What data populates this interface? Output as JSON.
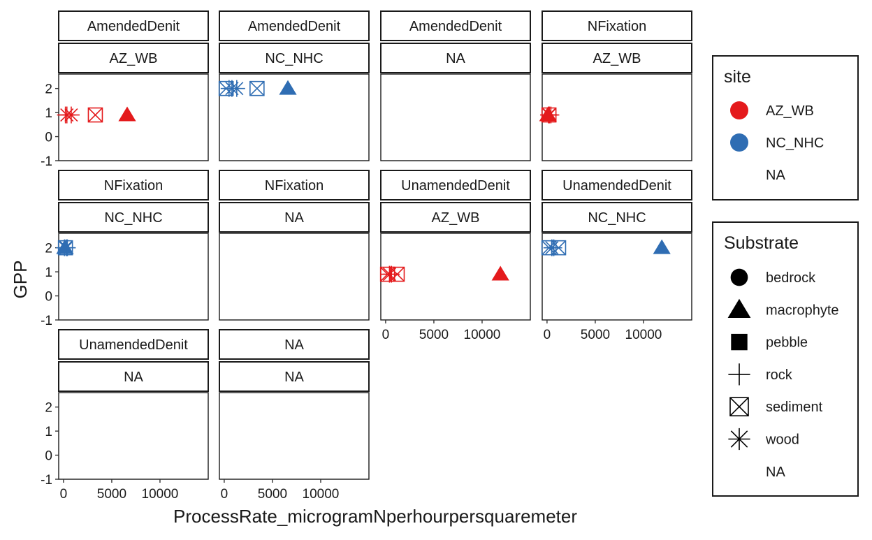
{
  "chart_data": {
    "type": "scatter",
    "title": "",
    "xlabel": "ProcessRate_microgramNperhourpersquaremeter",
    "ylabel": "GPP",
    "xlim": [
      -500,
      15000
    ],
    "ylim": [
      -1,
      2.6
    ],
    "x_ticks": [
      0,
      5000,
      10000
    ],
    "x_tick_labels": [
      "0",
      "5000",
      "10000"
    ],
    "y_ticks": [
      -1,
      0,
      1,
      2
    ],
    "y_tick_labels": [
      "-1",
      "0",
      "1",
      "2"
    ],
    "grid": false,
    "legend_position": "right",
    "colors": {
      "AZ_WB": "#e41a1c",
      "NC_NHC": "#2f6db3"
    },
    "legends": [
      {
        "title": "site",
        "kind": "color",
        "items": [
          {
            "label": "AZ_WB",
            "color": "#e41a1c"
          },
          {
            "label": "NC_NHC",
            "color": "#2f6db3"
          },
          {
            "label": "NA",
            "color": "none"
          }
        ]
      },
      {
        "title": "Substrate",
        "kind": "shape",
        "items": [
          {
            "label": "bedrock",
            "shape": "circle"
          },
          {
            "label": "macrophyte",
            "shape": "triangle"
          },
          {
            "label": "pebble",
            "shape": "square"
          },
          {
            "label": "rock",
            "shape": "plus"
          },
          {
            "label": "sediment",
            "shape": "boxx"
          },
          {
            "label": "wood",
            "shape": "asterisk"
          },
          {
            "label": "NA",
            "shape": "none"
          }
        ]
      }
    ],
    "panels": [
      {
        "strip1": "AmendedDenit",
        "strip2": "AZ_WB",
        "points": [
          {
            "x": 200,
            "y": 0.9,
            "site": "AZ_WB",
            "shape": "plus"
          },
          {
            "x": 350,
            "y": 0.9,
            "site": "AZ_WB",
            "shape": "asterisk"
          },
          {
            "x": 800,
            "y": 0.9,
            "site": "AZ_WB",
            "shape": "asterisk"
          },
          {
            "x": 3300,
            "y": 0.9,
            "site": "AZ_WB",
            "shape": "boxx"
          },
          {
            "x": 6600,
            "y": 0.9,
            "site": "AZ_WB",
            "shape": "triangle"
          }
        ]
      },
      {
        "strip1": "AmendedDenit",
        "strip2": "NC_NHC",
        "points": [
          {
            "x": 200,
            "y": 2.0,
            "site": "NC_NHC",
            "shape": "boxx"
          },
          {
            "x": 500,
            "y": 2.0,
            "site": "NC_NHC",
            "shape": "plus"
          },
          {
            "x": 800,
            "y": 2.0,
            "site": "NC_NHC",
            "shape": "asterisk"
          },
          {
            "x": 1300,
            "y": 2.0,
            "site": "NC_NHC",
            "shape": "asterisk"
          },
          {
            "x": 3400,
            "y": 2.0,
            "site": "NC_NHC",
            "shape": "boxx"
          },
          {
            "x": 6600,
            "y": 2.0,
            "site": "NC_NHC",
            "shape": "triangle"
          }
        ]
      },
      {
        "strip1": "AmendedDenit",
        "strip2": "NA",
        "points": []
      },
      {
        "strip1": "NFixation",
        "strip2": "AZ_WB",
        "points": [
          {
            "x": 100,
            "y": 0.9,
            "site": "AZ_WB",
            "shape": "triangle"
          },
          {
            "x": 150,
            "y": 0.9,
            "site": "AZ_WB",
            "shape": "plus"
          },
          {
            "x": 250,
            "y": 0.9,
            "site": "AZ_WB",
            "shape": "asterisk"
          },
          {
            "x": 400,
            "y": 0.9,
            "site": "AZ_WB",
            "shape": "plus"
          },
          {
            "x": 200,
            "y": 0.9,
            "site": "AZ_WB",
            "shape": "boxx"
          }
        ]
      },
      {
        "strip1": "NFixation",
        "strip2": "NC_NHC",
        "points": [
          {
            "x": 100,
            "y": 2.0,
            "site": "NC_NHC",
            "shape": "plus"
          },
          {
            "x": 150,
            "y": 2.0,
            "site": "NC_NHC",
            "shape": "triangle"
          },
          {
            "x": 200,
            "y": 2.0,
            "site": "NC_NHC",
            "shape": "boxx"
          },
          {
            "x": 300,
            "y": 2.0,
            "site": "NC_NHC",
            "shape": "asterisk"
          },
          {
            "x": 400,
            "y": 2.0,
            "site": "NC_NHC",
            "shape": "plus"
          }
        ]
      },
      {
        "strip1": "NFixation",
        "strip2": "NA",
        "points": []
      },
      {
        "strip1": "UnamendedDenit",
        "strip2": "AZ_WB",
        "points": [
          {
            "x": 200,
            "y": 0.9,
            "site": "AZ_WB",
            "shape": "boxx"
          },
          {
            "x": 400,
            "y": 0.9,
            "site": "AZ_WB",
            "shape": "asterisk"
          },
          {
            "x": 600,
            "y": 0.9,
            "site": "AZ_WB",
            "shape": "plus"
          },
          {
            "x": 1200,
            "y": 0.9,
            "site": "AZ_WB",
            "shape": "boxx"
          },
          {
            "x": 11900,
            "y": 0.9,
            "site": "AZ_WB",
            "shape": "triangle"
          }
        ]
      },
      {
        "strip1": "UnamendedDenit",
        "strip2": "NC_NHC",
        "points": [
          {
            "x": 200,
            "y": 2.0,
            "site": "NC_NHC",
            "shape": "boxx"
          },
          {
            "x": 500,
            "y": 2.0,
            "site": "NC_NHC",
            "shape": "asterisk"
          },
          {
            "x": 700,
            "y": 2.0,
            "site": "NC_NHC",
            "shape": "plus"
          },
          {
            "x": 1200,
            "y": 2.0,
            "site": "NC_NHC",
            "shape": "boxx"
          },
          {
            "x": 11900,
            "y": 2.0,
            "site": "NC_NHC",
            "shape": "triangle"
          }
        ]
      },
      {
        "strip1": "UnamendedDenit",
        "strip2": "NA",
        "points": []
      },
      {
        "strip1": "NA",
        "strip2": "NA",
        "points": []
      }
    ]
  }
}
